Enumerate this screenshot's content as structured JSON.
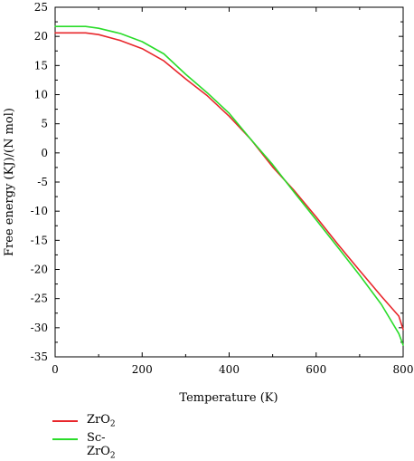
{
  "chart_data": {
    "type": "line",
    "xlabel": "Temperature (K)",
    "ylabel": "Free energy (KJ)/(N mol)",
    "xlim": [
      0,
      800
    ],
    "ylim": [
      -35,
      25
    ],
    "x_ticks": [
      0,
      200,
      400,
      600,
      800
    ],
    "y_ticks": [
      25,
      20,
      15,
      10,
      5,
      0,
      -5,
      -10,
      -15,
      -20,
      -25,
      -30,
      -35
    ],
    "grid": false,
    "legend_position": "bottom-left, below plot",
    "series": [
      {
        "name": "ZrO2",
        "name_parts": [
          "ZrO",
          "2"
        ],
        "color": "#e8262b",
        "x": [
          0,
          70,
          100,
          150,
          200,
          250,
          300,
          350,
          400,
          450,
          500,
          550,
          600,
          650,
          700,
          750,
          790,
          800
        ],
        "y": [
          20.6,
          20.6,
          20.3,
          19.3,
          17.9,
          15.8,
          12.7,
          9.8,
          6.3,
          2.3,
          -2.4,
          -6.5,
          -11.0,
          -15.7,
          -20.2,
          -24.6,
          -28.0,
          -30.3
        ]
      },
      {
        "name": "Sc-ZrO2",
        "name_parts": [
          "Sc-ZrO",
          "2"
        ],
        "color": "#2adc2a",
        "x": [
          0,
          70,
          100,
          150,
          200,
          250,
          300,
          350,
          400,
          450,
          500,
          550,
          600,
          650,
          700,
          750,
          790,
          800
        ],
        "y": [
          21.7,
          21.7,
          21.4,
          20.5,
          19.1,
          17.0,
          13.5,
          10.3,
          6.8,
          2.3,
          -2.0,
          -6.8,
          -11.5,
          -16.2,
          -21.0,
          -26.0,
          -31.0,
          -33.0
        ]
      }
    ]
  }
}
